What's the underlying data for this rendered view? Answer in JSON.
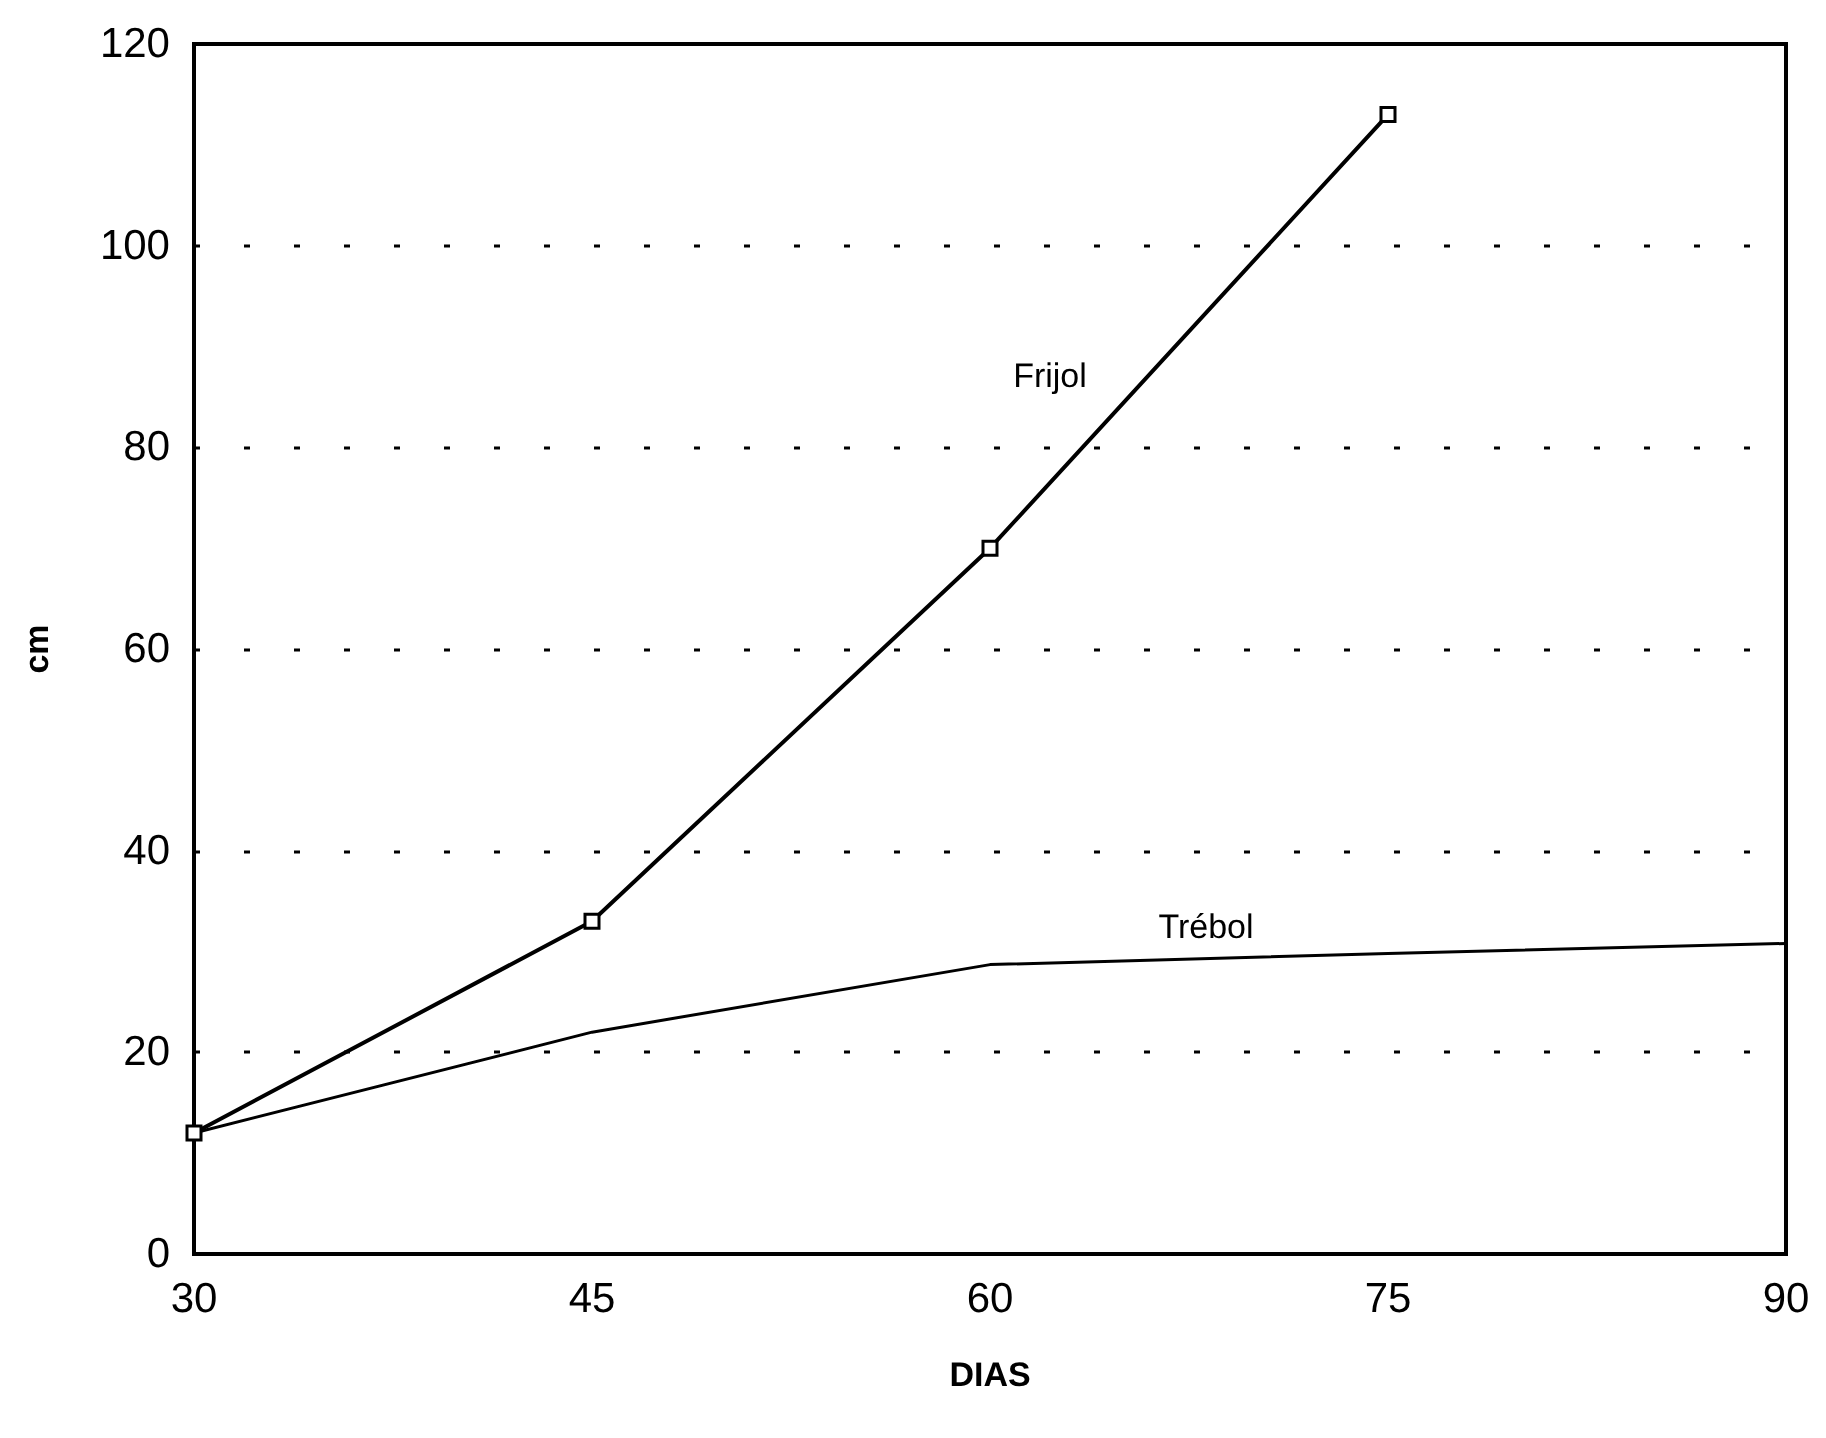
{
  "chart_data": {
    "type": "line",
    "xlabel": "DIAS",
    "ylabel": "cm",
    "series": [
      {
        "name": "Frijol",
        "color": "#000000",
        "marker": "square",
        "x": [
          30,
          45,
          60,
          75
        ],
        "values": [
          12,
          33,
          70,
          113
        ]
      },
      {
        "name": "Trébol",
        "color": "#000000",
        "marker": "none",
        "x": [
          30,
          45,
          60,
          75,
          90
        ],
        "values": [
          12,
          22,
          28.7,
          29.8,
          30.8
        ]
      }
    ],
    "xlim": [
      30,
      90
    ],
    "xticks": [
      30,
      45,
      60,
      75,
      90
    ],
    "ylim": [
      0,
      120
    ],
    "yticks": [
      0,
      20,
      40,
      60,
      80,
      100,
      120
    ],
    "grid": "y",
    "legend": false,
    "line_style": "solid"
  }
}
